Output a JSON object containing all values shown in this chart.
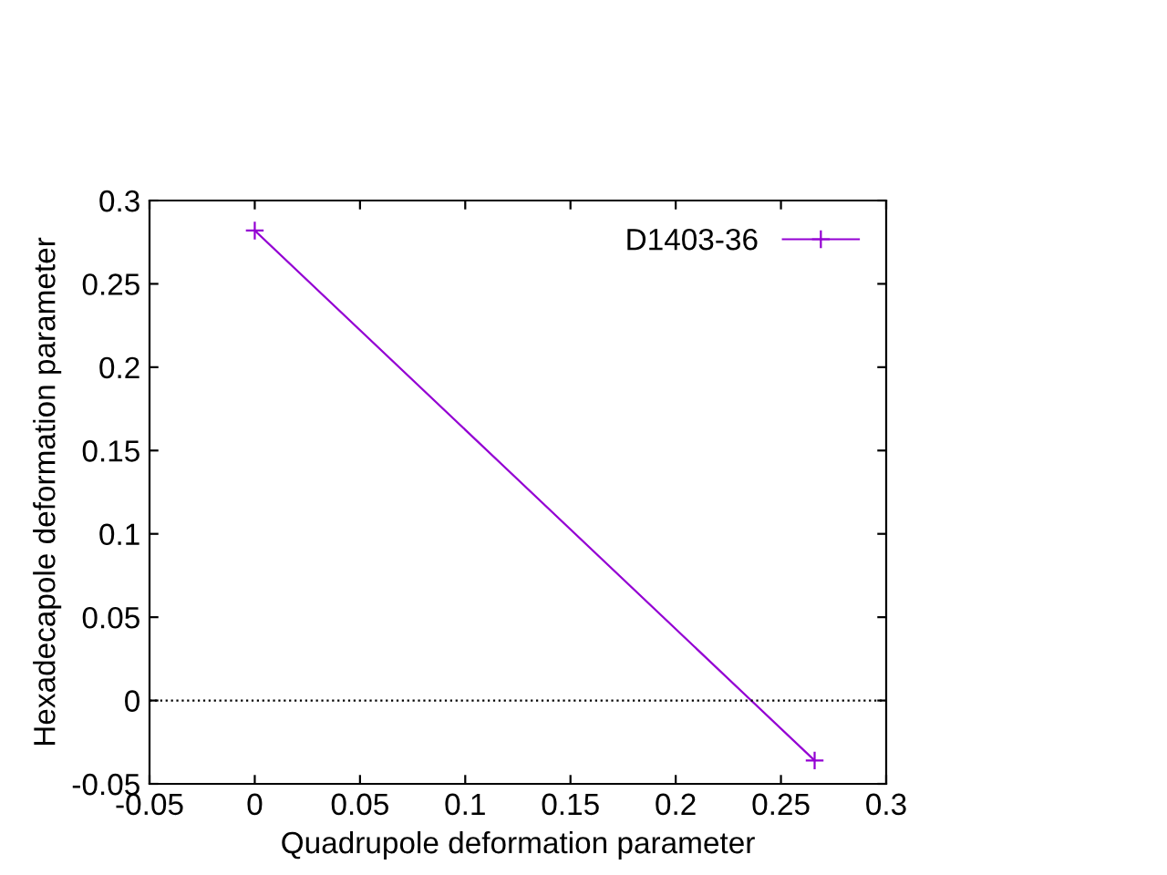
{
  "chart_data": {
    "type": "line",
    "xlabel": "Quadrupole deformation parameter",
    "ylabel": "Hexadecapole deformation parameter",
    "x": [
      0,
      0.266
    ],
    "series": [
      {
        "name": "D1403-36",
        "color": "#9400d3",
        "values": [
          0.282,
          -0.036
        ]
      }
    ],
    "xlim": [
      -0.05,
      0.3
    ],
    "xticks": [
      {
        "value": -0.05,
        "label": "-0.05"
      },
      0,
      0.05,
      0.1,
      0.15,
      0.2,
      0.25,
      0.3
    ],
    "ylim": [
      -0.05,
      0.3
    ],
    "yticks": [
      {
        "value": -0.05,
        "label": "-0.05"
      },
      0,
      0.05,
      0.1,
      0.15,
      0.2,
      0.25,
      0.3
    ],
    "ref_lines": [
      {
        "axis": "y",
        "value": 0,
        "color": "#000000",
        "line_style": "dotted"
      }
    ],
    "marker": "cross",
    "line_style": "solid",
    "grid": false,
    "legend": "top right"
  }
}
